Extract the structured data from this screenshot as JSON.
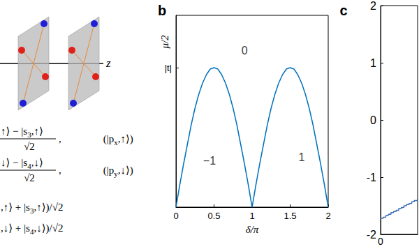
{
  "diagram": {
    "axis_label": "z",
    "states": [
      {
        "numerator": [
          "↑⟩ − |s",
          "3",
          ",↑⟩"
        ],
        "denominator": "√2",
        "tail": [
          ",    (|p",
          "x",
          ",↑⟩)"
        ]
      },
      {
        "numerator": [
          "↓⟩ − |s",
          "4",
          ",↓⟩"
        ],
        "denominator": "√2",
        "tail": [
          ",    (|p",
          "y",
          ",↓⟩)"
        ]
      }
    ],
    "lines": [
      [
        ",↑⟩ + |s",
        "3",
        ",↑⟩)/√2"
      ],
      [
        ",↓⟩ + |s",
        "4",
        ",↓⟩)/√2"
      ]
    ]
  },
  "chart_data": [
    {
      "type": "line",
      "title": "b",
      "xlabel": "δ/π",
      "ylabel": "μ/2",
      "x": [
        0,
        0.05,
        0.1,
        0.15,
        0.2,
        0.25,
        0.3,
        0.35,
        0.4,
        0.45,
        0.5,
        0.55,
        0.6,
        0.65,
        0.7,
        0.75,
        0.8,
        0.85,
        0.9,
        0.95,
        1,
        1.05,
        1.1,
        1.15,
        1.2,
        1.25,
        1.3,
        1.35,
        1.4,
        1.45,
        1.5,
        1.55,
        1.6,
        1.65,
        1.7,
        1.75,
        1.8,
        1.85,
        1.9,
        1.95,
        2
      ],
      "values": [
        0,
        0.16,
        0.31,
        0.45,
        0.59,
        0.71,
        0.81,
        0.89,
        0.95,
        0.99,
        1,
        0.99,
        0.95,
        0.89,
        0.81,
        0.71,
        0.59,
        0.45,
        0.31,
        0.16,
        0,
        0.16,
        0.31,
        0.45,
        0.59,
        0.71,
        0.81,
        0.89,
        0.95,
        0.99,
        1,
        0.99,
        0.95,
        0.89,
        0.81,
        0.71,
        0.59,
        0.45,
        0.31,
        0.16,
        0
      ],
      "color": "#0072bd",
      "xlim": [
        0,
        2
      ],
      "xticks": [
        0,
        0.5,
        1,
        1.5,
        2
      ],
      "ylim": [
        0,
        1.375
      ],
      "yticks": [
        {
          "value": 1,
          "label": "|t|"
        }
      ],
      "annotations": [
        {
          "text": "0",
          "x": 0.9,
          "y": 1.125
        },
        {
          "text": "−1",
          "x": 0.44,
          "y": 0.335
        },
        {
          "text": "1",
          "x": 1.65,
          "y": 0.36
        }
      ]
    },
    {
      "type": "line",
      "title": "c",
      "line_style": "step",
      "x": [
        0,
        0.07,
        0.14,
        0.21,
        0.28,
        0.35,
        0.42,
        0.49,
        0.56,
        0.63,
        0.7,
        0.77,
        0.84,
        0.91,
        1
      ],
      "values": [
        -1.72,
        -1.7,
        -1.67,
        -1.65,
        -1.62,
        -1.6,
        -1.58,
        -1.55,
        -1.53,
        -1.5,
        -1.48,
        -1.46,
        -1.43,
        -1.41,
        -1.38
      ],
      "color": "#3d6db5",
      "xlim": [
        0,
        1
      ],
      "xticks": [
        0
      ],
      "ylim": [
        -2,
        2
      ],
      "yticks": [
        -2,
        -1,
        0,
        1,
        2
      ]
    }
  ]
}
